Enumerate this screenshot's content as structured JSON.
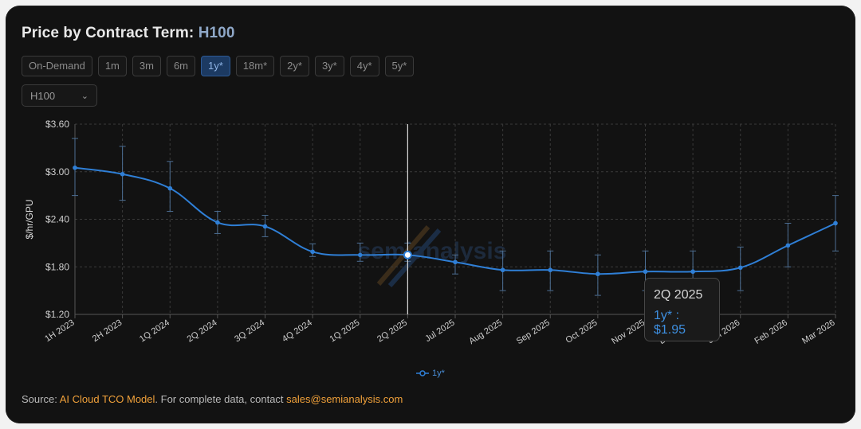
{
  "header": {
    "title_prefix": "Price by Contract Term:",
    "title_gpu": "H100"
  },
  "terms": [
    "On-Demand",
    "1m",
    "3m",
    "6m",
    "1y*",
    "18m*",
    "2y*",
    "3y*",
    "4y*",
    "5y*"
  ],
  "active_term": "1y*",
  "gpu_select": {
    "value": "H100"
  },
  "tooltip": {
    "title": "2Q 2025",
    "value": "1y* : $1.95"
  },
  "footer": {
    "prefix": "Source: ",
    "source_link": "AI Cloud TCO Model",
    "middle": ". For complete data, contact ",
    "email": "sales@semianalysis.com"
  },
  "watermark": "semianalysis",
  "colors": {
    "line": "#2f7fd6",
    "accent_link": "#f1a13a",
    "active_button": "#1c3a62"
  },
  "chart_data": {
    "type": "line",
    "ylabel": "$/hr/GPU",
    "y_ticks": [
      "$1.20",
      "$1.80",
      "$2.40",
      "$3.00",
      "$3.60"
    ],
    "ylim": [
      1.2,
      3.6
    ],
    "categories": [
      "1H 2023",
      "2H 2023",
      "1Q 2024",
      "2Q 2024",
      "3Q 2024",
      "4Q 2024",
      "1Q 2025",
      "2Q 2025",
      "Jul 2025",
      "Aug 2025",
      "Sep 2025",
      "Oct 2025",
      "Nov 2025",
      "Dec 2025",
      "Jan 2026",
      "Feb 2026",
      "Mar 2026"
    ],
    "series": [
      {
        "name": "1y*",
        "values": [
          3.05,
          2.97,
          2.79,
          2.36,
          2.31,
          1.99,
          1.95,
          1.95,
          1.86,
          1.76,
          1.76,
          1.71,
          1.74,
          1.74,
          1.79,
          2.07,
          2.35
        ],
        "error_low": [
          2.7,
          2.64,
          2.5,
          2.22,
          2.18,
          1.93,
          1.87,
          1.87,
          1.71,
          1.5,
          1.5,
          1.44,
          1.5,
          1.5,
          1.5,
          1.8,
          2.0
        ],
        "error_high": [
          3.42,
          3.32,
          3.13,
          2.5,
          2.45,
          2.09,
          2.1,
          2.1,
          1.95,
          2.0,
          2.0,
          1.95,
          2.0,
          2.0,
          2.05,
          2.35,
          2.7
        ]
      }
    ],
    "highlight_category": "2Q 2025",
    "grid": true,
    "legend_position": "bottom"
  }
}
